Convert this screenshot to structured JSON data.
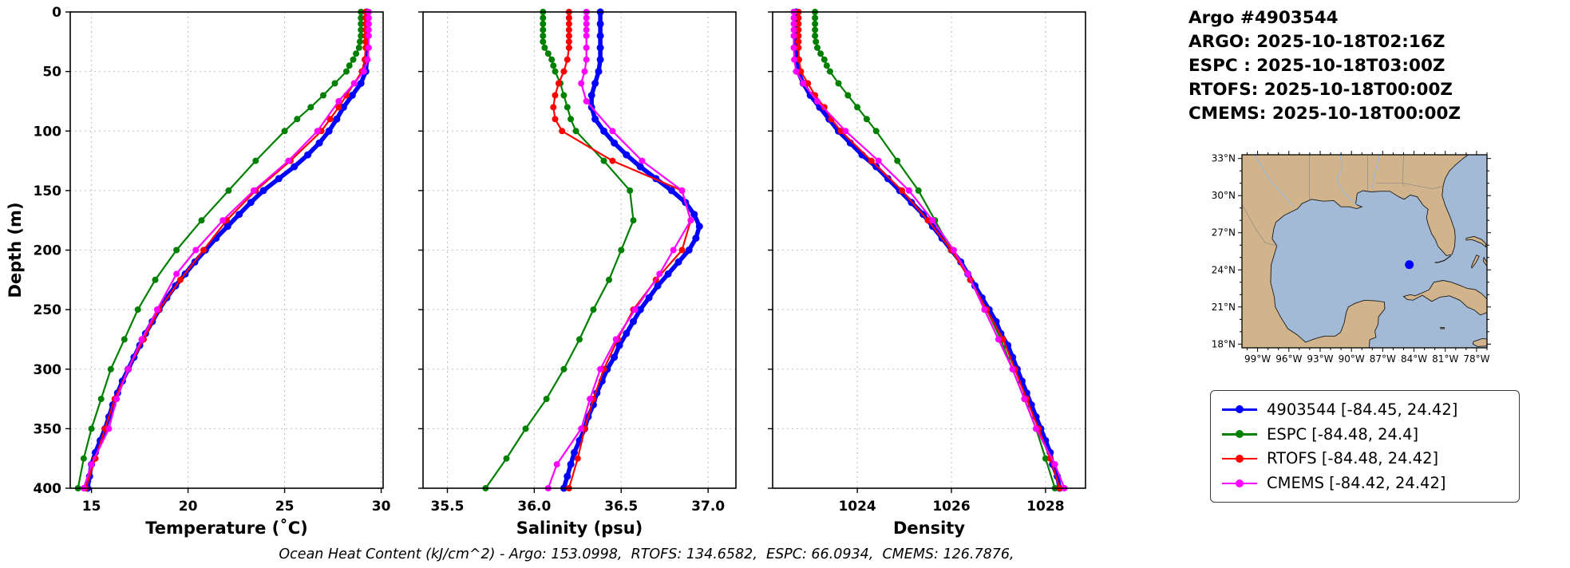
{
  "header": {
    "title": "Argo #4903544",
    "lines": [
      "ARGO: 2025-10-18T02:16Z",
      "ESPC : 2025-10-18T03:00Z",
      "RTOFS: 2025-10-18T00:00Z",
      "CMEMS: 2025-10-18T00:00Z"
    ]
  },
  "chart_data": {
    "type": "line",
    "title": "Argo #4903544 profile comparison",
    "footnote": "Ocean Heat Content (kJ/cm^2) - Argo: 153.0998,  RTOFS: 134.6582,  ESPC: 66.0934,  CMEMS: 126.7876,",
    "grid": true,
    "depth_axis": {
      "label": "Depth (m)",
      "lim": [
        0,
        400
      ],
      "ticks": [
        0,
        50,
        100,
        150,
        200,
        250,
        300,
        350,
        400
      ],
      "tick_labels": [
        "0",
        "50",
        "100",
        "150",
        "200",
        "250",
        "300",
        "350",
        "400"
      ]
    },
    "panels": [
      {
        "id": "temperature",
        "xlabel": "Temperature (˚C)",
        "field": "temperature",
        "xlim": [
          13.9,
          30.1
        ],
        "xticks": [
          15,
          20,
          25,
          30
        ],
        "xtick_labels": [
          "15",
          "20",
          "25",
          "30"
        ]
      },
      {
        "id": "salinity",
        "xlabel": "Salinity (psu)",
        "field": "salinity",
        "xlim": [
          35.36,
          37.16
        ],
        "xticks": [
          35.5,
          36.0,
          36.5,
          37.0
        ],
        "xtick_labels": [
          "35.5",
          "36.0",
          "36.5",
          "37.0"
        ]
      },
      {
        "id": "density",
        "xlabel": "Density",
        "field": "density",
        "xlim": [
          1022.2,
          1028.85
        ],
        "xticks": [
          1024,
          1026,
          1028
        ],
        "xtick_labels": [
          "1024",
          "1026",
          "1028"
        ]
      }
    ],
    "series": [
      {
        "id": "argo",
        "name": "4903544",
        "color": "#0000ff",
        "line_width": 5.5,
        "marker_radius": 4.5,
        "depths": [
          0,
          10,
          20,
          30,
          40,
          50,
          60,
          70,
          80,
          90,
          100,
          110,
          120,
          130,
          140,
          150,
          160,
          170,
          180,
          190,
          200,
          210,
          220,
          230,
          240,
          250,
          260,
          270,
          280,
          290,
          300,
          310,
          320,
          330,
          340,
          350,
          360,
          370,
          380,
          390,
          400
        ],
        "temperature": [
          29.25,
          29.25,
          29.25,
          29.25,
          29.26,
          29.2,
          28.95,
          28.5,
          28.05,
          27.7,
          27.3,
          26.8,
          26.2,
          25.5,
          24.7,
          23.9,
          23.25,
          22.65,
          22.05,
          21.45,
          20.9,
          20.35,
          19.85,
          19.35,
          18.9,
          18.5,
          18.15,
          17.8,
          17.5,
          17.2,
          16.9,
          16.6,
          16.35,
          16.1,
          15.9,
          15.7,
          15.45,
          15.2,
          15.0,
          14.9,
          14.8
        ],
        "salinity": [
          36.38,
          36.38,
          36.38,
          36.38,
          36.38,
          36.37,
          36.35,
          36.33,
          36.33,
          36.35,
          36.4,
          36.46,
          36.53,
          36.61,
          36.7,
          36.79,
          36.87,
          36.92,
          36.95,
          36.93,
          36.89,
          36.83,
          36.77,
          36.71,
          36.66,
          36.61,
          36.57,
          36.53,
          36.49,
          36.46,
          36.42,
          36.39,
          36.36,
          36.34,
          36.31,
          36.29,
          36.26,
          36.23,
          36.21,
          36.19,
          36.17
        ],
        "density": [
          1022.7,
          1022.7,
          1022.7,
          1022.7,
          1022.71,
          1022.74,
          1022.85,
          1023.0,
          1023.2,
          1023.4,
          1023.6,
          1023.85,
          1024.1,
          1024.4,
          1024.65,
          1024.9,
          1025.15,
          1025.4,
          1025.6,
          1025.8,
          1026.0,
          1026.2,
          1026.35,
          1026.5,
          1026.65,
          1026.8,
          1026.95,
          1027.05,
          1027.2,
          1027.3,
          1027.4,
          1027.5,
          1027.6,
          1027.7,
          1027.8,
          1027.9,
          1028.0,
          1028.1,
          1028.15,
          1028.25,
          1028.3
        ]
      },
      {
        "id": "espc",
        "name": "ESPC",
        "color": "#008000",
        "line_width": 2.2,
        "marker_radius": 4,
        "depths": [
          0,
          5,
          10,
          15,
          20,
          25,
          30,
          35,
          40,
          45,
          50,
          60,
          70,
          80,
          90,
          100,
          125,
          150,
          175,
          200,
          225,
          250,
          275,
          300,
          325,
          350,
          375,
          400
        ],
        "temperature": [
          28.95,
          28.95,
          28.95,
          28.95,
          28.95,
          28.9,
          28.85,
          28.7,
          28.55,
          28.35,
          28.2,
          27.6,
          27.0,
          26.35,
          25.65,
          25.0,
          23.5,
          22.1,
          20.7,
          19.4,
          18.3,
          17.4,
          16.7,
          16.0,
          15.5,
          15.0,
          14.6,
          14.3
        ],
        "salinity": [
          36.05,
          36.05,
          36.05,
          36.05,
          36.05,
          36.05,
          36.06,
          36.08,
          36.1,
          36.11,
          36.12,
          36.15,
          36.17,
          36.19,
          36.21,
          36.24,
          36.4,
          36.55,
          36.57,
          36.5,
          36.43,
          36.34,
          36.26,
          36.17,
          36.07,
          35.95,
          35.84,
          35.72
        ],
        "density": [
          1023.1,
          1023.1,
          1023.1,
          1023.1,
          1023.1,
          1023.12,
          1023.15,
          1023.22,
          1023.3,
          1023.35,
          1023.42,
          1023.6,
          1023.8,
          1024.0,
          1024.2,
          1024.4,
          1024.85,
          1025.3,
          1025.65,
          1026.0,
          1026.4,
          1026.75,
          1027.05,
          1027.3,
          1027.55,
          1027.8,
          1028.0,
          1028.2
        ]
      },
      {
        "id": "rtofs",
        "name": "RTOFS",
        "color": "#ff0000",
        "line_width": 2.2,
        "marker_radius": 4,
        "depths": [
          0,
          5,
          10,
          15,
          20,
          25,
          30,
          40,
          50,
          60,
          70,
          80,
          90,
          100,
          125,
          150,
          175,
          200,
          225,
          250,
          275,
          300,
          325,
          350,
          375,
          400
        ],
        "temperature": [
          29.2,
          29.2,
          29.2,
          29.2,
          29.2,
          29.2,
          29.2,
          29.15,
          29.0,
          28.6,
          28.2,
          27.8,
          27.35,
          26.9,
          25.3,
          23.5,
          22.0,
          20.8,
          19.6,
          18.5,
          17.7,
          16.9,
          16.2,
          15.7,
          15.2,
          14.7
        ],
        "salinity": [
          36.2,
          36.2,
          36.2,
          36.2,
          36.2,
          36.2,
          36.2,
          36.19,
          36.17,
          36.14,
          36.12,
          36.11,
          36.12,
          36.16,
          36.45,
          36.85,
          36.9,
          36.85,
          36.7,
          36.57,
          36.48,
          36.4,
          36.34,
          36.29,
          36.25,
          36.2
        ],
        "density": [
          1022.75,
          1022.75,
          1022.75,
          1022.75,
          1022.75,
          1022.75,
          1022.75,
          1022.76,
          1022.8,
          1022.95,
          1023.1,
          1023.3,
          1023.45,
          1023.65,
          1024.3,
          1024.95,
          1025.5,
          1026.0,
          1026.4,
          1026.75,
          1027.1,
          1027.35,
          1027.6,
          1027.85,
          1028.1,
          1028.3
        ]
      },
      {
        "id": "cmems",
        "name": "CMEMS",
        "color": "#ff00ff",
        "line_width": 2.2,
        "marker_radius": 4,
        "depths": [
          0,
          5,
          10,
          15,
          20,
          30,
          40,
          50,
          60,
          75,
          100,
          125,
          150,
          175,
          200,
          220,
          250,
          275,
          300,
          325,
          350,
          380,
          400
        ],
        "temperature": [
          29.35,
          29.35,
          29.35,
          29.35,
          29.35,
          29.35,
          29.3,
          29.1,
          28.6,
          27.8,
          26.7,
          25.2,
          23.4,
          21.8,
          20.4,
          19.4,
          18.4,
          17.6,
          16.9,
          16.3,
          15.9,
          15.0,
          14.6
        ],
        "salinity": [
          36.3,
          36.3,
          36.3,
          36.3,
          36.3,
          36.3,
          36.3,
          36.29,
          36.27,
          36.3,
          36.45,
          36.62,
          36.85,
          36.9,
          36.8,
          36.72,
          36.58,
          36.47,
          36.38,
          36.32,
          36.27,
          36.13,
          36.08
        ],
        "density": [
          1022.65,
          1022.65,
          1022.65,
          1022.65,
          1022.65,
          1022.65,
          1022.66,
          1022.7,
          1022.85,
          1023.15,
          1023.75,
          1024.45,
          1025.1,
          1025.6,
          1026.05,
          1026.35,
          1026.7,
          1027.0,
          1027.3,
          1027.55,
          1027.8,
          1028.2,
          1028.4
        ]
      }
    ],
    "legend": [
      {
        "label": "4903544 [-84.45, 24.42]",
        "color": "#0000ff"
      },
      {
        "label": "ESPC [-84.48, 24.4]",
        "color": "#008000"
      },
      {
        "label": "RTOFS [-84.48, 24.42]",
        "color": "#ff0000"
      },
      {
        "label": "CMEMS [-84.42, 24.42]",
        "color": "#ff00ff"
      }
    ],
    "map": {
      "extent": {
        "lon_min": -100.5,
        "lon_max": -77.0,
        "lat_min": 17.7,
        "lat_max": 33.3
      },
      "lon_ticks": [
        -99,
        -96,
        -93,
        -90,
        -87,
        -84,
        -81,
        -78
      ],
      "lon_tick_labels": [
        "99°W",
        "96°W",
        "93°W",
        "90°W",
        "87°W",
        "84°W",
        "81°W",
        "78°W"
      ],
      "lat_ticks": [
        18,
        21,
        24,
        27,
        30,
        33
      ],
      "lat_tick_labels": [
        "18°N",
        "21°N",
        "24°N",
        "27°N",
        "30°N",
        "33°N"
      ],
      "marker": {
        "lon": -84.45,
        "lat": 24.42,
        "color": "#0000ff"
      },
      "land_color": "#d2b48c",
      "water_color": "#a3bad6",
      "coast_color": "#1a1a1a"
    }
  }
}
